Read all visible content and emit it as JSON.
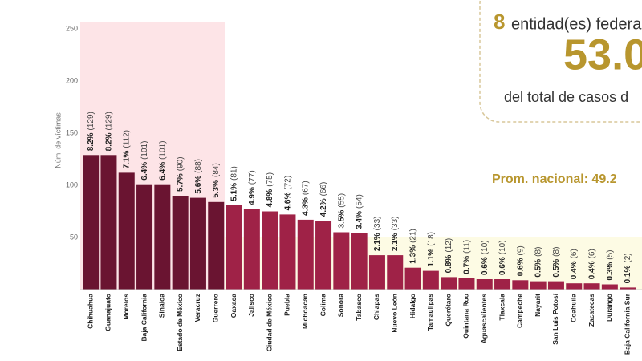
{
  "chart_data": {
    "type": "bar",
    "y_label": "Núm. de víctimas",
    "categories": [
      "Chihuahua",
      "Guanajuato",
      "Morelos",
      "Baja California",
      "Sinaloa",
      "Estado de México",
      "Veracruz",
      "Guerrero",
      "Oaxaca",
      "Jalisco",
      "Ciudad de México",
      "Puebla",
      "Michoacán",
      "Colima",
      "Sonora",
      "Tabasco",
      "Chiapas",
      "Nuevo León",
      "Hidalgo",
      "Tamaulipas",
      "Querétaro",
      "Quintana Roo",
      "Aguascalientes",
      "Tlaxcala",
      "Campeche",
      "Nayarit",
      "San Luis Potosí",
      "Coahuila",
      "Zacatecas",
      "Durango",
      "Baja California Sur"
    ],
    "values": [
      129,
      129,
      112,
      101,
      101,
      90,
      88,
      84,
      81,
      77,
      75,
      72,
      67,
      66,
      55,
      54,
      33,
      33,
      21,
      18,
      12,
      11,
      10,
      10,
      9,
      8,
      8,
      6,
      6,
      5,
      2
    ],
    "value_labels": [
      "(129)",
      "(129)",
      "(112)",
      "(101)",
      "(101)",
      "(90)",
      "(88)",
      "(84)",
      "(81)",
      "(77)",
      "(75)",
      "(72)",
      "(67)",
      "(66)",
      "(55)",
      "(54)",
      "(33)",
      "(33)",
      "(21)",
      "(18)",
      "(12)",
      "(11)",
      "(10)",
      "(10)",
      "(9)",
      "(8)",
      "(8)",
      "(6)",
      "(6)",
      "(5)",
      "(2)"
    ],
    "share_labels": [
      "8.2%",
      "8.2%",
      "7.1%",
      "6.4%",
      "6.4%",
      "5.7%",
      "5.6%",
      "5.3%",
      "5.1%",
      "4.9%",
      "4.8%",
      "4.6%",
      "4.3%",
      "4.2%",
      "3.5%",
      "3.4%",
      "2.1%",
      "2.1%",
      "1.3%",
      "1.1%",
      "0.8%",
      "0.7%",
      "0.6%",
      "0.6%",
      "0.6%",
      "0.5%",
      "0.5%",
      "0.4%",
      "0.4%",
      "0.3%",
      "0.1%"
    ],
    "colors": [
      "#6a1431",
      "#6a1431",
      "#6a1431",
      "#6a1431",
      "#6a1431",
      "#6a1431",
      "#6a1431",
      "#6a1431",
      "#9f2247",
      "#9f2247",
      "#9f2247",
      "#9f2247",
      "#9f2247",
      "#9f2247",
      "#9f2247",
      "#9f2247",
      "#9f2247",
      "#9f2247",
      "#9f2247",
      "#9f2247",
      "#9f2247",
      "#9f2247",
      "#9f2247",
      "#9f2247",
      "#9f2247",
      "#9f2247",
      "#9f2247",
      "#9f2247",
      "#9f2247",
      "#9f2247",
      "#9f2247"
    ],
    "ylim": [
      0,
      250
    ],
    "yticks": [
      50,
      100,
      150,
      200,
      250
    ]
  },
  "card": {
    "count": "8",
    "count_text": "entidad(es) federa",
    "percent": "53.0",
    "caption": "del total de casos d",
    "national_avg": "Prom. nacional: 49.2"
  }
}
